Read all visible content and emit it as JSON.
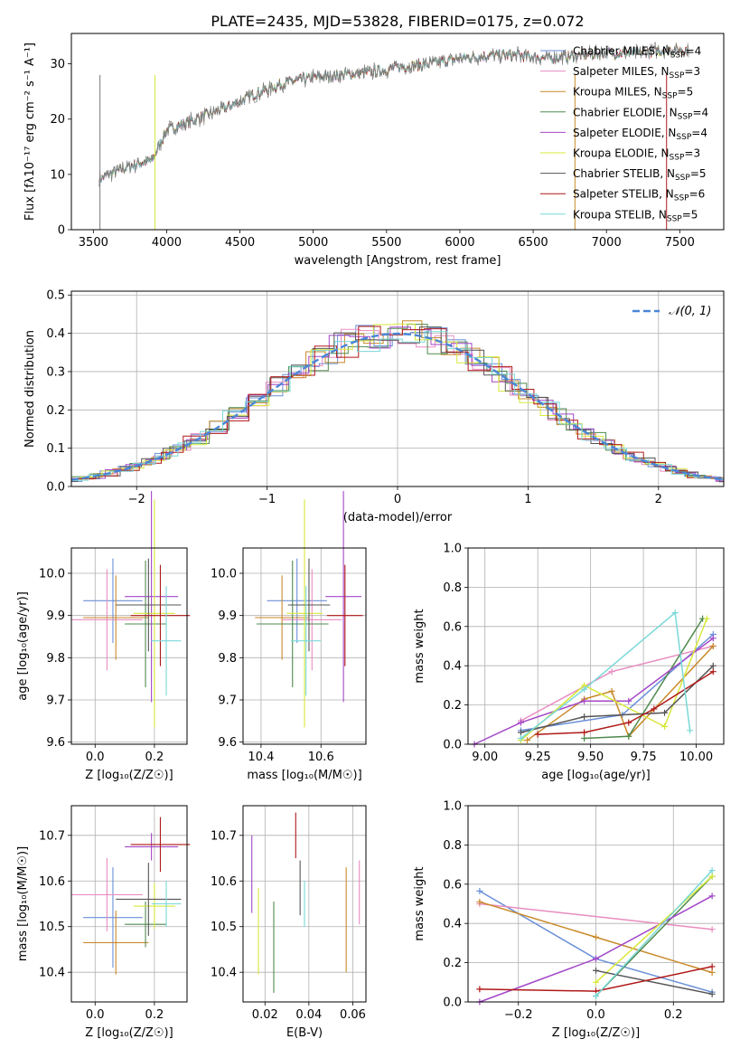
{
  "title": "PLATE=2435, MJD=53828, FIBERID=0175, z=0.072",
  "chart_data": [
    {
      "id": "spectrum",
      "type": "line",
      "ylabel": "Flux [fλ10⁻¹⁷ erg cm⁻² s⁻¹ A⁻¹]",
      "xlabel": "wavelength [Angstrom, rest frame]",
      "xlim": [
        3350,
        7800
      ],
      "ylim": [
        0,
        35.5
      ],
      "xticks": [
        3500,
        4000,
        4500,
        5000,
        5500,
        6000,
        6500,
        7000,
        7500
      ],
      "yticks": [
        0,
        10,
        20,
        30
      ],
      "grid": false,
      "legend_position": "top-right",
      "continuum_x": [
        3540,
        3600,
        3700,
        3800,
        3900,
        4000,
        4200,
        4400,
        4600,
        4800,
        5000,
        5200,
        5400,
        5600,
        5800,
        6000,
        6200,
        6400,
        6600,
        6800,
        7000,
        7200,
        7400,
        7550
      ],
      "continuum_y": [
        9,
        10,
        11,
        12,
        12.5,
        18,
        20,
        22,
        24.5,
        26.5,
        27.5,
        28,
        28.5,
        29.5,
        30,
        31,
        31.5,
        31.5,
        31,
        31.5,
        32,
        32,
        32.5,
        32.5
      ],
      "series": [
        {
          "name": "Chabrier MILES, N_SSP=4",
          "label": "Chabrier MILES, N",
          "sub": "SSP",
          "count": "=4",
          "color": "#6a8fd8"
        },
        {
          "name": "Salpeter MILES, N_SSP=3",
          "label": "Salpeter MILES, N",
          "sub": "SSP",
          "count": "=3",
          "color": "#e88cc0"
        },
        {
          "name": "Kroupa MILES, N_SSP=5",
          "label": "Kroupa MILES, N",
          "sub": "SSP",
          "count": "=5",
          "color": "#c98a2a"
        },
        {
          "name": "Chabrier ELODIE, N_SSP=4",
          "label": "Chabrier ELODIE, N",
          "sub": "SSP",
          "count": "=4",
          "color": "#4f8a4f"
        },
        {
          "name": "Salpeter ELODIE, N_SSP=4",
          "label": "Salpeter ELODIE, N",
          "sub": "SSP",
          "count": "=4",
          "color": "#a347c8"
        },
        {
          "name": "Kroupa ELODIE, N_SSP=3",
          "label": "Kroupa ELODIE, N",
          "sub": "SSP",
          "count": "=3",
          "color": "#d8e83a"
        },
        {
          "name": "Chabrier STELIB, N_SSP=5",
          "label": "Chabrier STELIB, N",
          "sub": "SSP",
          "count": "=5",
          "color": "#555555"
        },
        {
          "name": "Salpeter STELIB, N_SSP=6",
          "label": "Salpeter STELIB, N",
          "sub": "SSP",
          "count": "=6",
          "color": "#b01818"
        },
        {
          "name": "Kroupa STELIB, N_SSP=5",
          "label": "Kroupa STELIB, N",
          "sub": "SSP",
          "count": "=5",
          "color": "#7ad8d8"
        }
      ]
    },
    {
      "id": "residuals",
      "type": "histogram",
      "xlabel": "(data-model)/error",
      "ylabel": "Normed distribution",
      "xlim": [
        -2.5,
        2.5
      ],
      "ylim": [
        0,
        0.51
      ],
      "xticks": [
        -2,
        -1,
        0,
        1,
        2
      ],
      "yticks": [
        0.0,
        0.1,
        0.2,
        0.3,
        0.4,
        0.5
      ],
      "grid": true,
      "legend_position": "top-right",
      "reference_label": "𝒩(0, 1)",
      "reference_color": "#4a86d8"
    },
    {
      "id": "age-vs-Z",
      "type": "errorbar",
      "xlabel": "Z [log₁₀(Z/Z☉)]",
      "ylabel": "age  [log₁₀(age/yr)]",
      "xlim": [
        -0.08,
        0.31
      ],
      "ylim": [
        9.595,
        10.06
      ],
      "xticks": [
        0.0,
        0.2
      ],
      "yticks": [
        9.6,
        9.7,
        9.8,
        9.9,
        10.0
      ],
      "grid": true,
      "points": [
        {
          "x": 0.06,
          "xerr": 0.1,
          "y": 9.935,
          "yerr": 0.1,
          "color": "#6a8fd8"
        },
        {
          "x": 0.04,
          "xerr": 0.12,
          "y": 9.89,
          "yerr": 0.12,
          "color": "#e88cc0"
        },
        {
          "x": 0.07,
          "xerr": 0.11,
          "y": 9.895,
          "yerr": 0.1,
          "color": "#c98a2a"
        },
        {
          "x": 0.17,
          "xerr": 0.07,
          "y": 9.88,
          "yerr": 0.15,
          "color": "#4f8a4f"
        },
        {
          "x": 0.19,
          "xerr": 0.09,
          "y": 9.945,
          "yerr": 0.25,
          "color": "#a347c8"
        },
        {
          "x": 0.2,
          "xerr": 0.07,
          "y": 9.905,
          "yerr": 0.27,
          "color": "#d8e83a"
        },
        {
          "x": 0.18,
          "xerr": 0.11,
          "y": 9.925,
          "yerr": 0.11,
          "color": "#555555"
        },
        {
          "x": 0.22,
          "xerr": 0.1,
          "y": 9.9,
          "yerr": 0.12,
          "color": "#b01818"
        },
        {
          "x": 0.24,
          "xerr": 0.05,
          "y": 9.84,
          "yerr": 0.13,
          "color": "#7ad8d8"
        }
      ]
    },
    {
      "id": "age-vs-mass",
      "type": "errorbar",
      "xlabel": "mass [log₁₀(M/M☉)]",
      "xlim": [
        10.34,
        10.75
      ],
      "ylim": [
        9.595,
        10.06
      ],
      "xticks": [
        10.4,
        10.6
      ],
      "yticks": [
        9.6,
        9.7,
        9.8,
        9.9,
        10.0
      ],
      "grid": true,
      "points": [
        {
          "x": 10.52,
          "xerr": 0.1,
          "y": 9.935,
          "yerr": 0.1,
          "color": "#6a8fd8"
        },
        {
          "x": 10.57,
          "xerr": 0.1,
          "y": 9.89,
          "yerr": 0.12,
          "color": "#e88cc0"
        },
        {
          "x": 10.47,
          "xerr": 0.09,
          "y": 9.895,
          "yerr": 0.1,
          "color": "#c98a2a"
        },
        {
          "x": 10.505,
          "xerr": 0.12,
          "y": 9.88,
          "yerr": 0.15,
          "color": "#4f8a4f"
        },
        {
          "x": 10.675,
          "xerr": 0.06,
          "y": 9.945,
          "yerr": 0.25,
          "color": "#a347c8"
        },
        {
          "x": 10.545,
          "xerr": 0.06,
          "y": 9.905,
          "yerr": 0.27,
          "color": "#d8e83a"
        },
        {
          "x": 10.56,
          "xerr": 0.07,
          "y": 9.925,
          "yerr": 0.11,
          "color": "#555555"
        },
        {
          "x": 10.68,
          "xerr": 0.06,
          "y": 9.9,
          "yerr": 0.12,
          "color": "#b01818"
        },
        {
          "x": 10.55,
          "xerr": 0.05,
          "y": 9.84,
          "yerr": 0.13,
          "color": "#7ad8d8"
        }
      ]
    },
    {
      "id": "weight-vs-age",
      "type": "line",
      "xlabel": "age  [log₁₀(age/yr)]",
      "ylabel": "mass weight",
      "xlim": [
        8.92,
        10.13
      ],
      "ylim": [
        0,
        1.0
      ],
      "xticks": [
        9.0,
        9.25,
        9.5,
        9.75,
        10.0
      ],
      "yticks": [
        0.0,
        0.2,
        0.4,
        0.6,
        0.8,
        1.0
      ],
      "grid": true,
      "series": [
        {
          "color": "#6a8fd8",
          "x": [
            9.17,
            9.65,
            10.08
          ],
          "y": [
            0.07,
            0.15,
            0.56
          ]
        },
        {
          "color": "#e88cc0",
          "x": [
            9.17,
            9.6,
            10.08
          ],
          "y": [
            0.12,
            0.37,
            0.5
          ]
        },
        {
          "color": "#c98a2a",
          "x": [
            9.2,
            9.47,
            9.6,
            9.68,
            10.08
          ],
          "y": [
            0.02,
            0.23,
            0.27,
            0.04,
            0.5
          ]
        },
        {
          "color": "#4f8a4f",
          "x": [
            9.47,
            9.68,
            10.03
          ],
          "y": [
            0.03,
            0.04,
            0.64
          ]
        },
        {
          "color": "#a347c8",
          "x": [
            8.95,
            9.17,
            9.47,
            9.68,
            10.08
          ],
          "y": [
            0.0,
            0.11,
            0.22,
            0.22,
            0.54
          ]
        },
        {
          "color": "#d8e83a",
          "x": [
            9.17,
            9.47,
            9.85,
            10.05
          ],
          "y": [
            0.02,
            0.3,
            0.09,
            0.64
          ]
        },
        {
          "color": "#555555",
          "x": [
            9.17,
            9.47,
            9.85,
            10.08
          ],
          "y": [
            0.06,
            0.14,
            0.16,
            0.4
          ]
        },
        {
          "color": "#b01818",
          "x": [
            9.25,
            9.47,
            9.68,
            9.8,
            10.08
          ],
          "y": [
            0.05,
            0.06,
            0.11,
            0.18,
            0.37
          ]
        },
        {
          "color": "#7ad8d8",
          "x": [
            9.17,
            9.47,
            9.9,
            9.97
          ],
          "y": [
            0.03,
            0.28,
            0.67,
            0.07
          ]
        }
      ]
    },
    {
      "id": "mass-vs-Z",
      "type": "errorbar",
      "xlabel": "Z [log₁₀(Z/Z☉)]",
      "ylabel": "mass [log₁₀(M/M☉)]",
      "xlim": [
        -0.08,
        0.31
      ],
      "ylim": [
        10.335,
        10.765
      ],
      "xticks": [
        0.0,
        0.2
      ],
      "yticks": [
        10.4,
        10.5,
        10.6,
        10.7
      ],
      "grid": true,
      "points": [
        {
          "x": 0.06,
          "xerr": 0.1,
          "y": 10.52,
          "yerr": 0.11,
          "color": "#6a8fd8"
        },
        {
          "x": 0.04,
          "xerr": 0.12,
          "y": 10.57,
          "yerr": 0.08,
          "color": "#e88cc0"
        },
        {
          "x": 0.07,
          "xerr": 0.11,
          "y": 10.465,
          "yerr": 0.07,
          "color": "#c98a2a"
        },
        {
          "x": 0.17,
          "xerr": 0.07,
          "y": 10.505,
          "yerr": 0.05,
          "color": "#4f8a4f"
        },
        {
          "x": 0.19,
          "xerr": 0.09,
          "y": 10.675,
          "yerr": 0.03,
          "color": "#a347c8"
        },
        {
          "x": 0.2,
          "xerr": 0.07,
          "y": 10.545,
          "yerr": 0.05,
          "color": "#d8e83a"
        },
        {
          "x": 0.18,
          "xerr": 0.11,
          "y": 10.56,
          "yerr": 0.08,
          "color": "#555555"
        },
        {
          "x": 0.22,
          "xerr": 0.1,
          "y": 10.68,
          "yerr": 0.06,
          "color": "#b01818"
        },
        {
          "x": 0.24,
          "xerr": 0.05,
          "y": 10.55,
          "yerr": 0.05,
          "color": "#7ad8d8"
        }
      ]
    },
    {
      "id": "mass-vs-EBV",
      "type": "errorbar",
      "xlabel": "E(B-V)",
      "xlim": [
        0.01,
        0.066
      ],
      "ylim": [
        10.335,
        10.765
      ],
      "xticks": [
        0.02,
        0.04,
        0.06
      ],
      "yticks": [
        10.4,
        10.5,
        10.6,
        10.7
      ],
      "grid": true,
      "points": [
        {
          "x": 0.014,
          "y": 10.615,
          "yerr": 0.085,
          "color": "#a347c8"
        },
        {
          "x": 0.017,
          "y": 10.49,
          "yerr": 0.095,
          "color": "#d8e83a"
        },
        {
          "x": 0.024,
          "y": 10.455,
          "yerr": 0.1,
          "color": "#4f8a4f"
        },
        {
          "x": 0.034,
          "y": 10.7,
          "yerr": 0.05,
          "color": "#b01818"
        },
        {
          "x": 0.036,
          "y": 10.585,
          "yerr": 0.06,
          "color": "#555555"
        },
        {
          "x": 0.038,
          "y": 10.55,
          "yerr": 0.05,
          "color": "#7ad8d8"
        },
        {
          "x": 0.057,
          "y": 10.515,
          "yerr": 0.115,
          "color": "#c98a2a"
        },
        {
          "x": 0.063,
          "y": 10.575,
          "yerr": 0.07,
          "color": "#e88cc0"
        }
      ]
    },
    {
      "id": "weight-vs-Z",
      "type": "line",
      "xlabel": "Z [log₁₀(Z/Z☉)]",
      "ylabel": "mass weight",
      "xlim": [
        -0.33,
        0.33
      ],
      "ylim": [
        0,
        1.0
      ],
      "xticks": [
        -0.2,
        0.0,
        0.2
      ],
      "yticks": [
        0.0,
        0.2,
        0.4,
        0.6,
        0.8,
        1.0
      ],
      "grid": true,
      "series": [
        {
          "color": "#6a8fd8",
          "x": [
            -0.3,
            0.0,
            0.3
          ],
          "y": [
            0.565,
            0.22,
            0.05
          ]
        },
        {
          "color": "#e88cc0",
          "x": [
            -0.3,
            0.3
          ],
          "y": [
            0.5,
            0.37
          ]
        },
        {
          "color": "#c98a2a",
          "x": [
            -0.3,
            0.0,
            0.3
          ],
          "y": [
            0.51,
            0.33,
            0.15
          ]
        },
        {
          "color": "#4f8a4f",
          "x": [
            0.0,
            0.3
          ],
          "y": [
            0.03,
            0.64
          ]
        },
        {
          "color": "#a347c8",
          "x": [
            -0.3,
            0.0,
            0.3
          ],
          "y": [
            0.0,
            0.22,
            0.54
          ]
        },
        {
          "color": "#d8e83a",
          "x": [
            0.0,
            0.3
          ],
          "y": [
            0.1,
            0.64
          ]
        },
        {
          "color": "#555555",
          "x": [
            0.0,
            0.3
          ],
          "y": [
            0.16,
            0.04
          ]
        },
        {
          "color": "#b01818",
          "x": [
            -0.3,
            0.0,
            0.3
          ],
          "y": [
            0.065,
            0.055,
            0.18
          ]
        },
        {
          "color": "#7ad8d8",
          "x": [
            0.0,
            0.3
          ],
          "y": [
            0.03,
            0.67
          ]
        }
      ]
    }
  ]
}
